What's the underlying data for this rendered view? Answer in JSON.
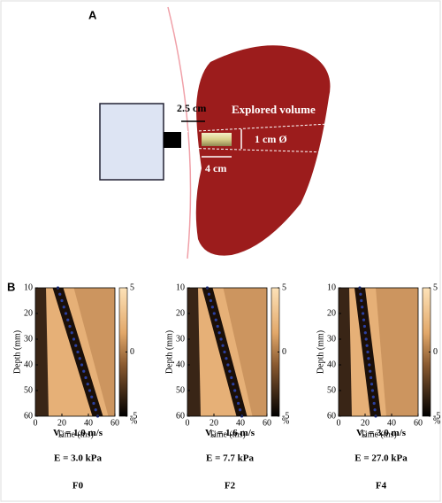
{
  "panel_a": {
    "label": "A",
    "depth_label": "2.5 cm",
    "volume_label": "Explored volume",
    "diameter_label": "1 cm Ø",
    "length_label": "4 cm"
  },
  "panel_b": {
    "label": "B",
    "plots": [
      {
        "xlim": [
          0,
          60
        ],
        "ylim": [
          10,
          60
        ],
        "xticks": [
          0,
          20,
          40,
          60
        ],
        "yticks": [
          10,
          20,
          30,
          40,
          50,
          60
        ],
        "x_label": "Time (ms)",
        "y_label": "Depth (mm)",
        "colorbar_ticks": [
          5,
          0,
          -5
        ],
        "colorbar_unit": "%",
        "vs_symbol": "V",
        "vs_subscript": "s",
        "vs_text": "= 1.0 m/s",
        "elasticity": "E = 3.0 kPa",
        "grade": "F0"
      },
      {
        "xlim": [
          0,
          60
        ],
        "ylim": [
          10,
          60
        ],
        "xticks": [
          0,
          20,
          40,
          60
        ],
        "yticks": [
          10,
          20,
          30,
          40,
          50,
          60
        ],
        "x_label": "Time (ms)",
        "y_label": "Depth (mm)",
        "colorbar_ticks": [
          5,
          0,
          -5
        ],
        "colorbar_unit": "%",
        "vs_symbol": "V",
        "vs_subscript": "s",
        "vs_text": "= 1.6 m/s",
        "elasticity": "E = 7.7 kPa",
        "grade": "F2"
      },
      {
        "xlim": [
          0,
          60
        ],
        "ylim": [
          10,
          60
        ],
        "xticks": [
          0,
          20,
          40,
          60
        ],
        "yticks": [
          10,
          20,
          30,
          40,
          50,
          60
        ],
        "x_label": "Time (ms)",
        "y_label": "Depth (mm)",
        "colorbar_ticks": [
          5,
          0,
          -5
        ],
        "colorbar_unit": "%",
        "vs_symbol": "V",
        "vs_subscript": "s",
        "vs_text": "= 3.0 m/s",
        "elasticity": "E = 27.0 kPa",
        "grade": "F4"
      }
    ]
  }
}
